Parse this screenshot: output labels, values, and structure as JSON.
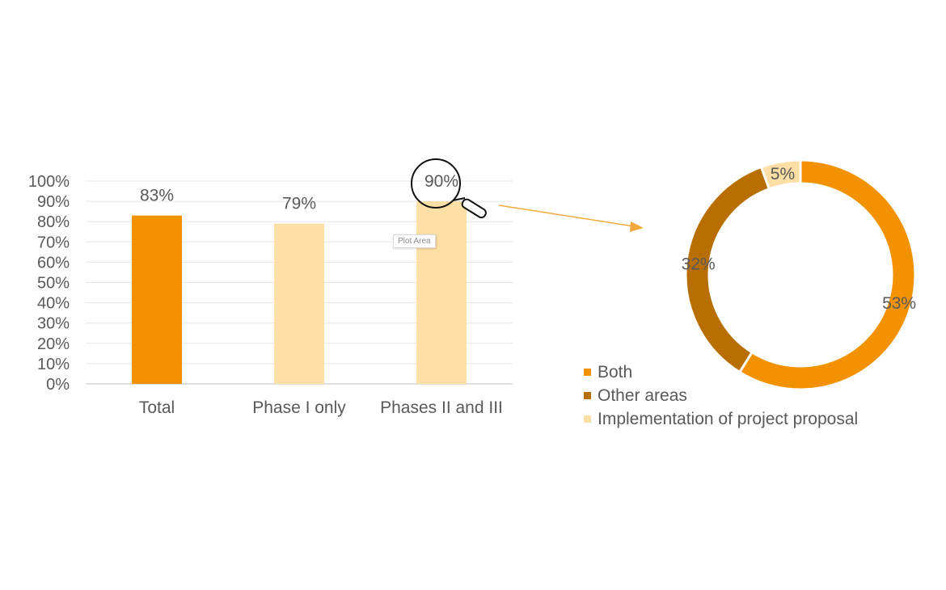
{
  "chart_data": [
    {
      "type": "bar",
      "categories": [
        "Total",
        "Phase I only",
        "Phases II and III"
      ],
      "values": [
        83,
        79,
        90
      ],
      "value_labels": [
        "83%",
        "79%",
        "90%"
      ],
      "bar_colors": [
        "#f39200",
        "#fddea4",
        "#fddea4"
      ],
      "ylim": [
        0,
        100
      ],
      "yticks": [
        "0%",
        "10%",
        "20%",
        "30%",
        "40%",
        "50%",
        "60%",
        "70%",
        "80%",
        "90%",
        "100%"
      ],
      "grid": true
    },
    {
      "type": "pie",
      "style": "donut",
      "slices": [
        {
          "name": "Both",
          "value": 53,
          "label": "53%",
          "color": "#f39200"
        },
        {
          "name": "Other areas",
          "value": 32,
          "label": "32%",
          "color": "#b86e00"
        },
        {
          "name": "Implementation of project proposal",
          "value": 5,
          "label": "5%",
          "color": "#fddea4"
        }
      ],
      "legend_position": "bottom-left"
    }
  ],
  "tooltip": {
    "text": "Plot Area"
  },
  "icons": {
    "cursor": "magnifier-icon",
    "connector": "arrow-icon"
  },
  "colors": {
    "arrow": "#f0a93a",
    "grid": "#e6e6e6",
    "axis": "#bfbfbf",
    "text": "#595959"
  }
}
